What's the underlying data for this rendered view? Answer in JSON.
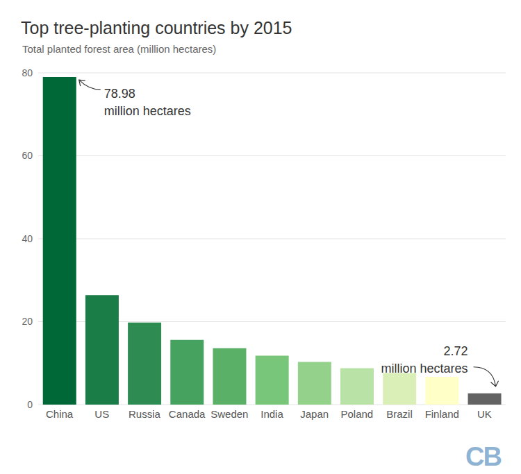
{
  "chart_data": {
    "type": "bar",
    "title": "Top tree-planting countries by 2015",
    "subtitle": "Total planted forest area (million hectares)",
    "categories": [
      "China",
      "US",
      "Russia",
      "Canada",
      "Sweden",
      "India",
      "Japan",
      "Poland",
      "Brazil",
      "Finland",
      "UK"
    ],
    "values": [
      78.98,
      26.4,
      19.8,
      15.6,
      13.6,
      11.8,
      10.3,
      8.8,
      7.6,
      6.7,
      2.72
    ],
    "colors": [
      "#006837",
      "#1a7c46",
      "#2e8b52",
      "#45a35f",
      "#5bb068",
      "#78c679",
      "#94d28c",
      "#b9e2a6",
      "#d9efb7",
      "#ffffc8",
      "#636363"
    ],
    "ylim": [
      0,
      80
    ],
    "yticks": [
      0,
      20,
      40,
      60,
      80
    ],
    "grid": true,
    "annotations": [
      {
        "category": "China",
        "lines": [
          "78.98",
          "million hectares"
        ]
      },
      {
        "category": "UK",
        "lines": [
          "2.72",
          "million hectares"
        ]
      }
    ],
    "logo": "CB"
  }
}
